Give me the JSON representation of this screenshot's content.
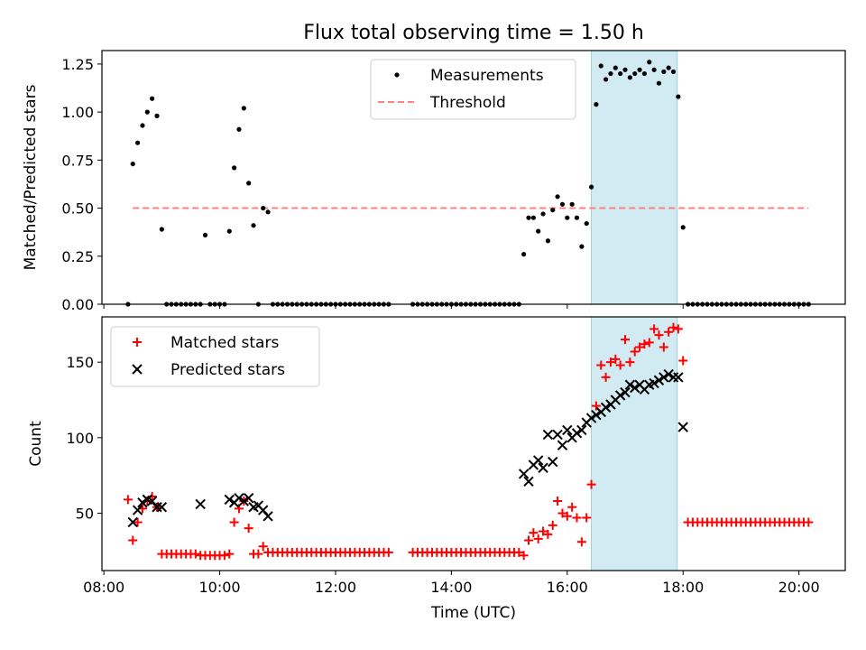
{
  "figure": {
    "title": "Flux total observing time = 1.50 h"
  },
  "chart_data": [
    {
      "type": "scatter",
      "panel": "top",
      "ylabel": "Matched/Predicted stars",
      "xlabel": "",
      "ylim": [
        0.0,
        1.32
      ],
      "xlim": [
        "07:58",
        "20:48"
      ],
      "yticks": [
        "0.00",
        "0.25",
        "0.50",
        "0.75",
        "1.00",
        "1.25"
      ],
      "legend_position": "upper center",
      "shaded_interval": {
        "start": "16:25",
        "end": "17:54",
        "color": "#add8e6"
      },
      "threshold": {
        "name": "Threshold",
        "value": 0.5,
        "start": "08:30",
        "end": "20:10",
        "color": "#ff8080",
        "style": "dashed"
      },
      "series": [
        {
          "name": "Measurements",
          "marker": "dot",
          "color": "#000000",
          "x": [
            "08:25",
            "08:30",
            "08:35",
            "08:40",
            "08:45",
            "08:50",
            "08:55",
            "09:00",
            "09:05",
            "09:10",
            "09:15",
            "09:20",
            "09:25",
            "09:30",
            "09:35",
            "09:40",
            "09:45",
            "09:50",
            "09:55",
            "10:00",
            "10:05",
            "10:10",
            "10:15",
            "10:20",
            "10:25",
            "10:30",
            "10:35",
            "10:40",
            "10:45",
            "10:50",
            "10:55",
            "11:00",
            "11:05",
            "11:10",
            "11:15",
            "11:20",
            "11:25",
            "11:30",
            "11:35",
            "11:40",
            "11:45",
            "11:50",
            "11:55",
            "12:00",
            "12:05",
            "12:10",
            "12:15",
            "12:20",
            "12:25",
            "12:30",
            "12:35",
            "12:40",
            "12:45",
            "12:50",
            "12:55",
            "13:20",
            "13:25",
            "13:30",
            "13:35",
            "13:40",
            "13:45",
            "13:50",
            "13:55",
            "14:00",
            "14:05",
            "14:10",
            "14:15",
            "14:20",
            "14:25",
            "14:30",
            "14:35",
            "14:40",
            "14:45",
            "14:50",
            "14:55",
            "15:00",
            "15:05",
            "15:10",
            "15:15",
            "15:20",
            "15:25",
            "15:30",
            "15:35",
            "15:40",
            "15:45",
            "15:50",
            "15:55",
            "16:00",
            "16:05",
            "16:10",
            "16:15",
            "16:20",
            "16:25",
            "16:30",
            "16:35",
            "16:40",
            "16:45",
            "16:50",
            "16:55",
            "17:00",
            "17:05",
            "17:10",
            "17:15",
            "17:20",
            "17:25",
            "17:30",
            "17:35",
            "17:40",
            "17:45",
            "17:50",
            "17:55",
            "18:00",
            "18:05",
            "18:10",
            "18:15",
            "18:20",
            "18:25",
            "18:30",
            "18:35",
            "18:40",
            "18:45",
            "18:50",
            "18:55",
            "19:00",
            "19:05",
            "19:10",
            "19:15",
            "19:20",
            "19:25",
            "19:30",
            "19:35",
            "19:40",
            "19:45",
            "19:50",
            "19:55",
            "20:00",
            "20:05",
            "20:10"
          ],
          "y": [
            0.0,
            0.73,
            0.84,
            0.93,
            1.0,
            1.07,
            0.98,
            0.39,
            0.0,
            0.0,
            0.0,
            0.0,
            0.0,
            0.0,
            0.0,
            0.0,
            0.36,
            0.0,
            0.0,
            0.0,
            0.0,
            0.38,
            0.71,
            0.91,
            1.02,
            0.63,
            0.41,
            0.0,
            0.5,
            0.48,
            0.0,
            0.0,
            0.0,
            0.0,
            0.0,
            0.0,
            0.0,
            0.0,
            0.0,
            0.0,
            0.0,
            0.0,
            0.0,
            0.0,
            0.0,
            0.0,
            0.0,
            0.0,
            0.0,
            0.0,
            0.0,
            0.0,
            0.0,
            0.0,
            0.0,
            0.0,
            0.0,
            0.0,
            0.0,
            0.0,
            0.0,
            0.0,
            0.0,
            0.0,
            0.0,
            0.0,
            0.0,
            0.0,
            0.0,
            0.0,
            0.0,
            0.0,
            0.0,
            0.0,
            0.0,
            0.0,
            0.0,
            0.0,
            0.26,
            0.45,
            0.45,
            0.38,
            0.47,
            0.33,
            0.49,
            0.56,
            0.52,
            0.45,
            0.52,
            0.45,
            0.3,
            0.42,
            0.61,
            1.04,
            1.24,
            1.17,
            1.2,
            1.23,
            1.2,
            1.22,
            1.18,
            1.2,
            1.22,
            1.2,
            1.26,
            1.22,
            1.15,
            1.21,
            1.23,
            1.21,
            1.08,
            0.4,
            0.0,
            0.0,
            0.0,
            0.0,
            0.0,
            0.0,
            0.0,
            0.0,
            0.0,
            0.0,
            0.0,
            0.0,
            0.0,
            0.0,
            0.0,
            0.0,
            0.0,
            0.0,
            0.0,
            0.0,
            0.0,
            0.0,
            0.0,
            0.0,
            0.0,
            0.0
          ]
        }
      ]
    },
    {
      "type": "scatter",
      "panel": "bottom",
      "ylabel": "Count",
      "xlabel": "Time (UTC)",
      "ylim": [
        12,
        180
      ],
      "xlim": [
        "07:58",
        "20:48"
      ],
      "yticks": [
        "50",
        "100",
        "150"
      ],
      "xticks": [
        "08:00",
        "10:00",
        "12:00",
        "14:00",
        "16:00",
        "18:00",
        "20:00"
      ],
      "legend_position": "upper left",
      "shaded_interval": {
        "start": "16:25",
        "end": "17:54",
        "color": "#add8e6"
      },
      "series": [
        {
          "name": "Matched stars",
          "marker": "plus",
          "color": "#ff0000",
          "x": [
            "08:25",
            "08:30",
            "08:35",
            "08:40",
            "08:45",
            "08:50",
            "08:55",
            "09:00",
            "09:05",
            "09:10",
            "09:15",
            "09:20",
            "09:25",
            "09:30",
            "09:35",
            "09:40",
            "09:45",
            "09:50",
            "09:55",
            "10:00",
            "10:05",
            "10:10",
            "10:15",
            "10:20",
            "10:25",
            "10:30",
            "10:35",
            "10:40",
            "10:45",
            "10:50",
            "10:55",
            "11:00",
            "11:05",
            "11:10",
            "11:15",
            "11:20",
            "11:25",
            "11:30",
            "11:35",
            "11:40",
            "11:45",
            "11:50",
            "11:55",
            "12:00",
            "12:05",
            "12:10",
            "12:15",
            "12:20",
            "12:25",
            "12:30",
            "12:35",
            "12:40",
            "12:45",
            "12:50",
            "12:55",
            "13:20",
            "13:25",
            "13:30",
            "13:35",
            "13:40",
            "13:45",
            "13:50",
            "13:55",
            "14:00",
            "14:05",
            "14:10",
            "14:15",
            "14:20",
            "14:25",
            "14:30",
            "14:35",
            "14:40",
            "14:45",
            "14:50",
            "14:55",
            "15:00",
            "15:05",
            "15:10",
            "15:15",
            "15:20",
            "15:25",
            "15:30",
            "15:35",
            "15:40",
            "15:45",
            "15:50",
            "15:55",
            "16:00",
            "16:05",
            "16:10",
            "16:15",
            "16:20",
            "16:25",
            "16:30",
            "16:35",
            "16:40",
            "16:45",
            "16:50",
            "16:55",
            "17:00",
            "17:05",
            "17:10",
            "17:15",
            "17:20",
            "17:25",
            "17:30",
            "17:35",
            "17:40",
            "17:45",
            "17:50",
            "17:55",
            "18:00",
            "18:05",
            "18:10",
            "18:15",
            "18:20",
            "18:25",
            "18:30",
            "18:35",
            "18:40",
            "18:45",
            "18:50",
            "18:55",
            "19:00",
            "19:05",
            "19:10",
            "19:15",
            "19:20",
            "19:25",
            "19:30",
            "19:35",
            "19:40",
            "19:45",
            "19:50",
            "19:55",
            "20:00",
            "20:05",
            "20:10"
          ],
          "y": [
            59,
            32,
            44,
            53,
            58,
            61,
            54,
            23,
            23,
            23,
            23,
            23,
            23,
            23,
            23,
            22,
            22,
            22,
            22,
            22,
            22,
            23,
            44,
            53,
            58,
            40,
            23,
            23,
            28,
            24,
            24,
            24,
            24,
            24,
            24,
            24,
            24,
            24,
            24,
            24,
            24,
            24,
            24,
            24,
            24,
            24,
            24,
            24,
            24,
            24,
            24,
            24,
            24,
            24,
            24,
            24,
            24,
            24,
            24,
            24,
            24,
            24,
            24,
            24,
            24,
            24,
            24,
            24,
            24,
            24,
            24,
            24,
            24,
            24,
            24,
            24,
            24,
            24,
            22,
            32,
            37,
            33,
            38,
            36,
            42,
            58,
            50,
            48,
            54,
            47,
            31,
            47,
            69,
            121,
            148,
            140,
            150,
            152,
            148,
            165,
            150,
            157,
            160,
            162,
            163,
            172,
            168,
            160,
            170,
            173,
            172,
            151,
            44,
            44,
            44,
            44,
            44,
            44,
            44,
            44,
            44,
            44,
            44,
            44,
            44,
            44,
            44,
            44,
            44,
            44,
            44,
            44,
            44,
            44,
            44,
            44,
            44,
            44
          ]
        },
        {
          "name": "Predicted stars",
          "marker": "x",
          "color": "#000000",
          "x": [
            "08:30",
            "08:35",
            "08:40",
            "08:45",
            "08:50",
            "08:55",
            "09:00",
            "09:40",
            "10:10",
            "10:15",
            "10:20",
            "10:25",
            "10:30",
            "10:35",
            "10:40",
            "10:45",
            "10:50",
            "15:15",
            "15:20",
            "15:25",
            "15:30",
            "15:35",
            "15:40",
            "15:45",
            "15:50",
            "15:55",
            "16:00",
            "16:05",
            "16:10",
            "16:15",
            "16:20",
            "16:25",
            "16:30",
            "16:35",
            "16:40",
            "16:45",
            "16:50",
            "16:55",
            "17:00",
            "17:05",
            "17:10",
            "17:15",
            "17:20",
            "17:25",
            "17:30",
            "17:35",
            "17:40",
            "17:45",
            "17:50",
            "17:55",
            "18:00"
          ],
          "y": [
            44,
            52,
            57,
            59,
            58,
            54,
            54,
            56,
            59,
            57,
            60,
            58,
            60,
            54,
            55,
            52,
            48,
            76,
            71,
            82,
            85,
            80,
            102,
            84,
            102,
            95,
            105,
            100,
            103,
            105,
            110,
            113,
            115,
            117,
            120,
            122,
            125,
            128,
            130,
            135,
            133,
            135,
            132,
            135,
            136,
            138,
            140,
            142,
            140,
            140,
            107
          ]
        }
      ]
    }
  ]
}
